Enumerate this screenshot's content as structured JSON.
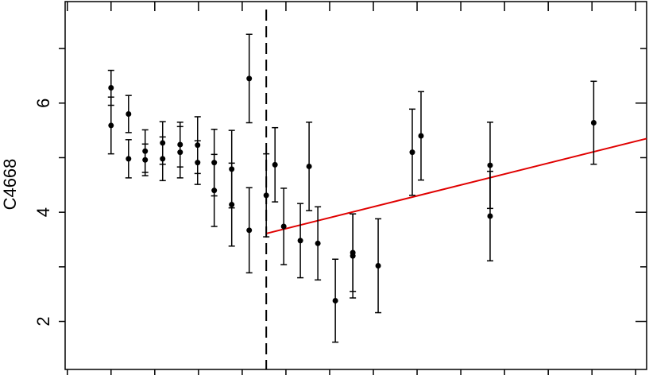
{
  "chart_data": {
    "type": "scatter",
    "ylabel": "C4668",
    "xlim": [
      -0.05,
      13.25
    ],
    "xticks": [
      0,
      1,
      2,
      3,
      4,
      5,
      6,
      7,
      8,
      9,
      10,
      11,
      12,
      13
    ],
    "ylim": [
      1.12,
      7.86
    ],
    "yticks": [
      2,
      4,
      6
    ],
    "yminor": [
      3,
      5,
      7
    ],
    "series": [
      {
        "color": "#000000",
        "x": [
          1.0,
          1.0,
          1.4,
          1.4,
          1.78,
          1.78,
          2.18,
          2.18,
          2.58,
          2.58,
          2.98,
          2.98,
          3.36,
          3.36,
          3.76,
          3.76,
          4.16,
          4.16,
          4.55,
          4.75,
          4.95,
          5.33,
          5.53,
          5.73,
          6.13,
          6.53,
          6.53,
          7.11,
          7.89,
          8.09,
          9.67,
          9.67,
          12.04
        ],
        "values": [
          6.28,
          5.59,
          5.8,
          4.98,
          5.12,
          4.96,
          5.27,
          4.98,
          5.24,
          5.1,
          5.23,
          4.91,
          4.91,
          4.4,
          4.79,
          4.14,
          6.45,
          3.67,
          4.31,
          4.87,
          3.74,
          3.48,
          4.84,
          3.43,
          2.38,
          3.26,
          3.2,
          3.02,
          5.1,
          5.4,
          4.86,
          3.93,
          5.64
        ],
        "errors": [
          0.32,
          0.52,
          0.34,
          0.35,
          0.39,
          0.29,
          0.39,
          0.4,
          0.41,
          0.47,
          0.52,
          0.4,
          0.61,
          0.66,
          0.71,
          0.76,
          0.81,
          0.78,
          0.76,
          0.68,
          0.7,
          0.68,
          0.81,
          0.67,
          0.76,
          0.71,
          0.77,
          0.86,
          0.79,
          0.81,
          0.79,
          0.82,
          0.76
        ]
      }
    ],
    "vline": {
      "x": 4.55,
      "style": "dashed",
      "color": "#000000"
    },
    "fit": {
      "x": [
        4.55,
        13.25
      ],
      "values": [
        3.61,
        5.35
      ],
      "color": "#e00000"
    }
  }
}
